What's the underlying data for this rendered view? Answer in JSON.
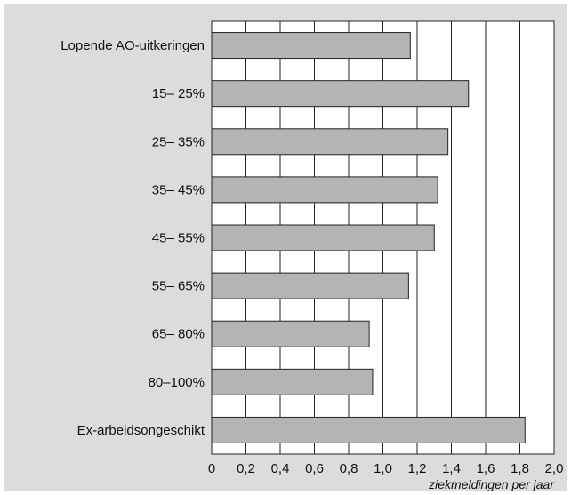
{
  "chart_data": {
    "type": "bar",
    "orientation": "horizontal",
    "categories": [
      "Lopende AO-uitkeringen",
      "15– 25%",
      "25– 35%",
      "35– 45%",
      "45– 55%",
      "55– 65%",
      "65– 80%",
      "80–100%",
      "Ex-arbeidsongeschikt"
    ],
    "values": [
      1.16,
      1.5,
      1.38,
      1.32,
      1.3,
      1.15,
      0.92,
      0.94,
      1.83
    ],
    "xlim": [
      0,
      2.0
    ],
    "xticks": [
      "0",
      "0,2",
      "0,4",
      "0,6",
      "0,8",
      "1,0",
      "1,2",
      "1,4",
      "1,6",
      "1,8",
      "2,0"
    ],
    "xlabel": "ziekmeldingen per jaar",
    "ylabel": "",
    "title": "",
    "grid": "vertical",
    "colors": {
      "background": "#dcdcdc",
      "plot_area": "#ffffff",
      "bar": "#b4b4b4",
      "bar_edge": "#222222",
      "grid": "#222222"
    }
  }
}
